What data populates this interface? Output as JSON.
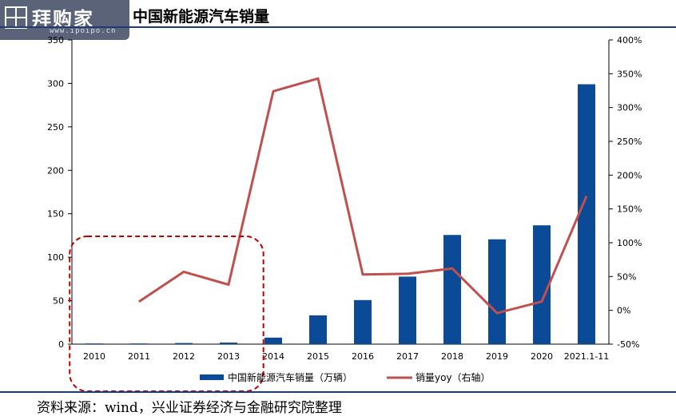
{
  "header": {
    "title": "中国新能源汽车销量"
  },
  "logo": {
    "name": "拜购家",
    "url": "www.ipoipo.cn"
  },
  "source": "资料来源：wind，兴业证券经济与金融研究院整理",
  "colors": {
    "bar": "#0b4a96",
    "line": "#c0504d",
    "rule": "#1f3a7a",
    "highlight_box": "#c00000"
  },
  "chart_data": {
    "type": "bar+line",
    "title": "中国新能源汽车销量",
    "categories": [
      "2010",
      "2011",
      "2012",
      "2013",
      "2014",
      "2015",
      "2016",
      "2017",
      "2018",
      "2019",
      "2020",
      "2021.1-11"
    ],
    "y_left": {
      "ticks": [
        "0",
        "50",
        "100",
        "150",
        "200",
        "250",
        "300",
        "350"
      ],
      "range": [
        0,
        350
      ]
    },
    "y_right": {
      "ticks": [
        "-50%",
        "0%",
        "50%",
        "100%",
        "150%",
        "200%",
        "250%",
        "300%",
        "350%",
        "400%"
      ],
      "range": [
        -50,
        400
      ],
      "unit": "%"
    },
    "grid": false,
    "legend_position": "bottom",
    "series": [
      {
        "name": "中国新能源汽车销量（万辆）",
        "type": "bar",
        "axis": "left",
        "values": [
          0.8,
          0.8,
          1.3,
          1.8,
          7.5,
          33.1,
          50.7,
          77.7,
          125.6,
          120.6,
          136.7,
          299.0
        ]
      },
      {
        "name": "销量yoy（右轴）",
        "type": "line",
        "axis": "right",
        "values": [
          null,
          13,
          57,
          38,
          324,
          343,
          53,
          54,
          62,
          -4,
          13,
          169
        ]
      }
    ],
    "annotations": [
      {
        "type": "dashed-rounded-box",
        "covers": [
          "2010",
          "2013"
        ]
      }
    ]
  }
}
